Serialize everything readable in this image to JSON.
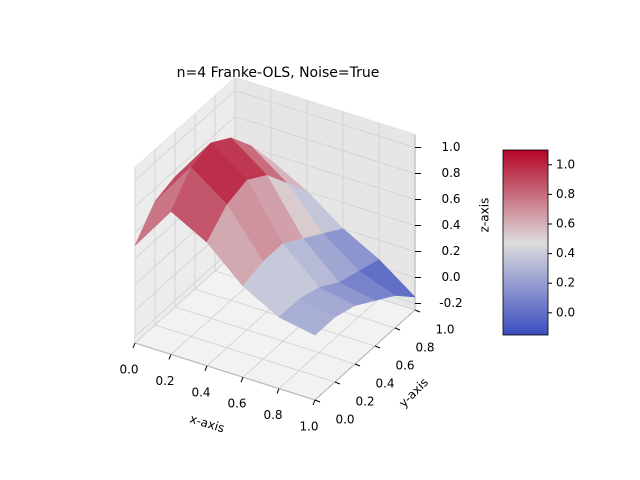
{
  "chart_data": {
    "type": "surface3d",
    "title": "n=4 Franke-OLS, Noise=True",
    "xlabel": "x-axis",
    "ylabel": "y-axis",
    "zlabel": "z-axis",
    "x": [
      0,
      0.2,
      0.4,
      0.6,
      0.8,
      1
    ],
    "y": [
      0,
      0.2,
      0.4,
      0.6,
      0.8,
      1
    ],
    "z": [
      [
        0.5,
        0.85,
        0.7,
        0.45,
        0.3,
        0.25
      ],
      [
        0.7,
        1.05,
        0.85,
        0.5,
        0.3,
        0.25
      ],
      [
        0.75,
        1.1,
        0.9,
        0.5,
        0.25,
        0.2
      ],
      [
        0.7,
        1.0,
        0.8,
        0.4,
        0.15,
        0.1
      ],
      [
        0.55,
        0.8,
        0.6,
        0.3,
        0.1,
        0.0
      ],
      [
        0.4,
        0.55,
        0.4,
        0.2,
        0.05,
        -0.15
      ]
    ],
    "xlim": [
      0,
      1
    ],
    "ylim": [
      0,
      1
    ],
    "zlim": [
      -0.25,
      1.1
    ],
    "xticks": [
      {
        "value": 0,
        "label": "0.0"
      },
      0.2,
      0.4,
      0.6,
      0.8,
      {
        "value": 1,
        "label": "1.0"
      }
    ],
    "yticks": [
      {
        "value": 0,
        "label": "0.0"
      },
      0.2,
      0.4,
      0.6,
      0.8,
      {
        "value": 1,
        "label": "1.0"
      }
    ],
    "zticks": [
      -0.2,
      {
        "value": 0,
        "label": "0.0"
      },
      0.2,
      0.4,
      0.6,
      0.8,
      {
        "value": 1,
        "label": "1.0"
      }
    ],
    "colormap": [
      "#3b4cc0",
      "#dddddd",
      "#b40426"
    ],
    "clim": [
      -0.15,
      1.1
    ],
    "cbar_ticks": [
      {
        "value": 0,
        "label": "0.0"
      },
      0.2,
      0.4,
      0.6,
      0.8,
      {
        "value": 1,
        "label": "1.0"
      }
    ],
    "grid": true
  }
}
